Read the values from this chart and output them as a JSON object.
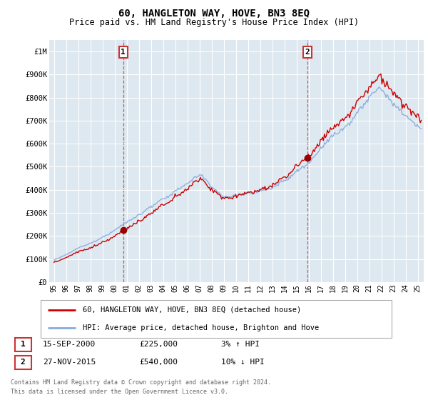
{
  "title": "60, HANGLETON WAY, HOVE, BN3 8EQ",
  "subtitle": "Price paid vs. HM Land Registry's House Price Index (HPI)",
  "ylabel_ticks": [
    "£0",
    "£100K",
    "£200K",
    "£300K",
    "£400K",
    "£500K",
    "£600K",
    "£700K",
    "£800K",
    "£900K",
    "£1M"
  ],
  "ytick_values": [
    0,
    100000,
    200000,
    300000,
    400000,
    500000,
    600000,
    700000,
    800000,
    900000,
    1000000
  ],
  "ylim": [
    0,
    1050000
  ],
  "xlim_start": 1994.6,
  "xlim_end": 2025.5,
  "sale1_x": 2000.71,
  "sale1_y": 225000,
  "sale2_x": 2015.9,
  "sale2_y": 540000,
  "sale1_label": "15-SEP-2000",
  "sale1_price": "£225,000",
  "sale1_hpi": "3% ↑ HPI",
  "sale2_label": "27-NOV-2015",
  "sale2_price": "£540,000",
  "sale2_hpi": "10% ↓ HPI",
  "line_color_red": "#cc0000",
  "line_color_blue": "#88aadd",
  "vline_color": "#cc3333",
  "grid_color": "#c8d8e8",
  "bg_color": "#dde8f0",
  "legend_label_red": "60, HANGLETON WAY, HOVE, BN3 8EQ (detached house)",
  "legend_label_blue": "HPI: Average price, detached house, Brighton and Hove",
  "footer": "Contains HM Land Registry data © Crown copyright and database right 2024.\nThis data is licensed under the Open Government Licence v3.0."
}
